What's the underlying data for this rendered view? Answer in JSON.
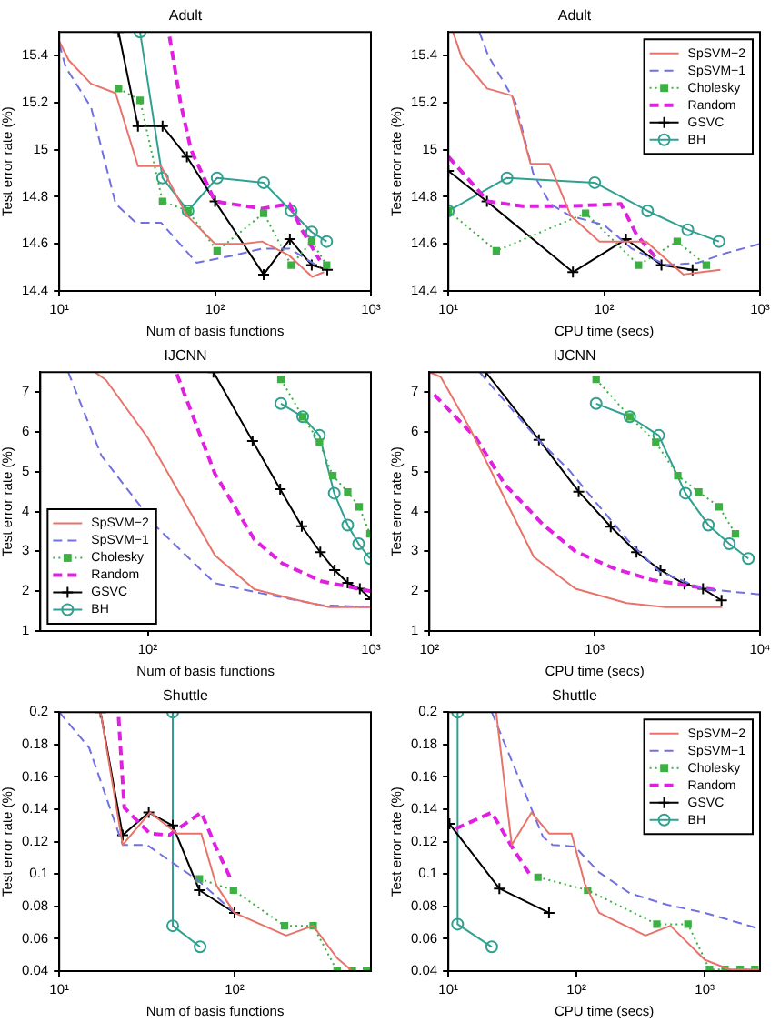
{
  "chart_data": [
    {
      "type": "line",
      "title": "Adult",
      "xlabel": "Num of basis functions",
      "ylabel": "Test error rate (%)",
      "log": "x",
      "xlim": [
        10,
        1000
      ],
      "xticks": [
        {
          "value": 10,
          "label": "10¹"
        },
        {
          "value": 100,
          "label": "10²"
        },
        {
          "value": 1000,
          "label": "10³"
        }
      ],
      "ylim": [
        14.4,
        15.5
      ],
      "yticks": [
        14.4,
        14.6,
        14.8,
        15,
        15.2,
        15.4
      ],
      "series": [
        {
          "color": "#e8736b",
          "line_style": "solid",
          "marker": "none",
          "x": [
            10,
            11.5,
            16,
            23,
            32,
            45,
            66,
            100,
            150,
            200,
            300,
            420,
            500
          ],
          "values": [
            15.46,
            15.38,
            15.28,
            15.24,
            14.93,
            14.93,
            14.72,
            14.6,
            14.6,
            14.61,
            14.55,
            14.46,
            14.48
          ]
        },
        {
          "color": "#7070e0",
          "line_style": "dashed",
          "marker": "none",
          "x": [
            10,
            11,
            16,
            23,
            31,
            45,
            76,
            130,
            200,
            300,
            470
          ],
          "values": [
            15.45,
            15.35,
            15.18,
            14.77,
            14.69,
            14.69,
            14.52,
            14.55,
            14.58,
            14.58,
            14.5
          ]
        },
        {
          "color": "#3cb043",
          "line_style": "dotted",
          "marker": "square",
          "x": [
            24,
            33,
            46,
            67,
            103,
            205,
            308,
            417,
            520
          ],
          "values": [
            15.26,
            15.21,
            14.78,
            14.74,
            14.57,
            14.73,
            14.51,
            14.61,
            14.51
          ]
        },
        {
          "color": "#e020e0",
          "line_style": "dashed",
          "marker": "none",
          "x": [
            51,
            60,
            70,
            100,
            200,
            300,
            360,
            470
          ],
          "values": [
            15.48,
            15.2,
            15.0,
            14.78,
            14.75,
            14.77,
            14.66,
            14.53
          ]
        },
        {
          "color": "#000000",
          "line_style": "solid",
          "marker": "cross",
          "x": [
            24,
            32,
            46,
            66,
            100,
            205,
            302,
            417,
            525
          ],
          "values": [
            15.5,
            15.1,
            15.1,
            14.97,
            14.78,
            14.47,
            14.62,
            14.51,
            14.49
          ]
        },
        {
          "color": "#30a090",
          "line_style": "solid",
          "marker": "circle",
          "x": [
            33,
            46,
            67,
            103,
            205,
            308,
            417,
            520
          ],
          "values": [
            15.5,
            14.88,
            14.74,
            14.88,
            14.86,
            14.74,
            14.65,
            14.61
          ]
        }
      ]
    },
    {
      "type": "line",
      "title": "Adult",
      "xlabel": "CPU time (secs)",
      "ylabel": "Test error rate (%)",
      "log": "x",
      "xlim": [
        10,
        1000
      ],
      "xticks": [
        {
          "value": 10,
          "label": "10¹"
        },
        {
          "value": 100,
          "label": "10²"
        },
        {
          "value": 1000,
          "label": "10³"
        }
      ],
      "ylim": [
        14.4,
        15.5
      ],
      "yticks": [
        14.4,
        14.6,
        14.8,
        15,
        15.2,
        15.4
      ],
      "legend": "top right",
      "series": [
        {
          "name": "SpSVM−2",
          "color": "#e8736b",
          "line_style": "solid",
          "marker": "none",
          "x": [
            10.7,
            12.2,
            17.7,
            25.6,
            33.7,
            44.5,
            61,
            93,
            135,
            186,
            323,
            557
          ],
          "values": [
            15.5,
            15.39,
            15.26,
            15.23,
            14.94,
            14.94,
            14.72,
            14.61,
            14.61,
            14.61,
            14.47,
            14.49
          ]
        },
        {
          "name": "SpSVM−1",
          "color": "#7070e0",
          "line_style": "dashed",
          "marker": "none",
          "x": [
            15.8,
            18,
            27,
            35,
            45,
            60,
            100,
            150,
            250,
            400,
            600,
            1000
          ],
          "values": [
            15.5,
            15.4,
            15.2,
            14.9,
            14.77,
            14.72,
            14.68,
            14.58,
            14.51,
            14.52,
            14.56,
            14.6
          ]
        },
        {
          "name": "Cholesky",
          "color": "#3cb043",
          "line_style": "dotted",
          "marker": "square",
          "x": [
            10,
            20.3,
            76,
            166,
            294,
            452
          ],
          "values": [
            14.74,
            14.57,
            14.73,
            14.51,
            14.61,
            14.51
          ]
        },
        {
          "name": "Random",
          "color": "#e020e0",
          "line_style": "dashed",
          "marker": "none",
          "x": [
            10,
            18,
            30,
            60,
            128,
            161,
            222
          ],
          "values": [
            14.97,
            14.78,
            14.76,
            14.76,
            14.77,
            14.64,
            14.53
          ]
        },
        {
          "name": "GSVC",
          "color": "#000000",
          "line_style": "solid",
          "marker": "cross",
          "x": [
            10,
            17.7,
            63,
            138,
            233,
            369
          ],
          "values": [
            14.91,
            14.78,
            14.48,
            14.62,
            14.51,
            14.49
          ]
        },
        {
          "name": "BH",
          "color": "#30a090",
          "line_style": "solid",
          "marker": "circle",
          "x": [
            10,
            23.8,
            87,
            190,
            344,
            545
          ],
          "values": [
            14.74,
            14.88,
            14.86,
            14.74,
            14.66,
            14.61
          ]
        }
      ]
    },
    {
      "type": "line",
      "title": "IJCNN",
      "xlabel": "Num of basis functions",
      "ylabel": "Test error rate (%)",
      "log": "x",
      "xlim": [
        33,
        1000
      ],
      "xticks": [
        {
          "value": 100,
          "label": "10²"
        },
        {
          "value": 1000,
          "label": "10³"
        }
      ],
      "ylim": [
        1,
        7.5
      ],
      "yticks": [
        1,
        2,
        3,
        4,
        5,
        6,
        7
      ],
      "legend": "bottom left",
      "series": [
        {
          "name": "SpSVM−2",
          "color": "#e8736b",
          "line_style": "solid",
          "marker": "none",
          "x": [
            58,
            65,
            100,
            200,
            300,
            450,
            650,
            1000
          ],
          "values": [
            7.5,
            7.3,
            5.85,
            2.9,
            2.05,
            1.8,
            1.6,
            1.6
          ]
        },
        {
          "name": "SpSVM−1",
          "color": "#7070e0",
          "line_style": "dashed",
          "marker": "none",
          "x": [
            44,
            62,
            110,
            200,
            320,
            600,
            1000
          ],
          "values": [
            7.5,
            5.4,
            3.6,
            2.2,
            1.95,
            1.65,
            1.6
          ]
        },
        {
          "name": "Cholesky",
          "color": "#3cb043",
          "line_style": "dotted",
          "marker": "square",
          "x": [
            395,
            495,
            588,
            675,
            787,
            886,
            990
          ],
          "values": [
            7.32,
            6.38,
            5.74,
            4.9,
            4.49,
            4.12,
            3.44
          ]
        },
        {
          "name": "Random",
          "color": "#e020e0",
          "line_style": "dashed",
          "marker": "none",
          "x": [
            135,
            200,
            300,
            400,
            600,
            1000
          ],
          "values": [
            7.45,
            4.95,
            3.3,
            2.7,
            2.25,
            2.0
          ]
        },
        {
          "name": "GSVC",
          "color": "#000000",
          "line_style": "solid",
          "marker": "cross",
          "x": [
            197,
            295,
            392,
            490,
            593,
            688,
            787,
            892,
            1000
          ],
          "values": [
            7.5,
            5.77,
            4.56,
            3.63,
            2.98,
            2.53,
            2.21,
            2.06,
            1.8
          ]
        },
        {
          "name": "BH",
          "color": "#30a090",
          "line_style": "solid",
          "marker": "circle",
          "x": [
            395,
            495,
            588,
            685,
            787,
            881,
            990
          ],
          "values": [
            6.71,
            6.38,
            5.91,
            4.46,
            3.66,
            3.19,
            2.82
          ]
        }
      ]
    },
    {
      "type": "line",
      "title": "IJCNN",
      "xlabel": "CPU time (secs)",
      "ylabel": "Test error rate (%)",
      "log": "x",
      "xlim": [
        100,
        10000
      ],
      "xticks": [
        {
          "value": 100,
          "label": "10²"
        },
        {
          "value": 1000,
          "label": "10³"
        },
        {
          "value": 10000,
          "label": "10⁴"
        }
      ],
      "ylim": [
        1,
        7.5
      ],
      "yticks": [
        1,
        2,
        3,
        4,
        5,
        6,
        7
      ],
      "series": [
        {
          "color": "#e8736b",
          "line_style": "solid",
          "marker": "none",
          "x": [
            100,
            117,
            175,
            428,
            765,
            1560,
            2670,
            5900
          ],
          "values": [
            7.5,
            7.38,
            6.1,
            2.86,
            2.06,
            1.7,
            1.6,
            1.6
          ]
        },
        {
          "color": "#7070e0",
          "line_style": "dashed",
          "marker": "none",
          "x": [
            201,
            447,
            700,
            913,
            1570,
            2450,
            4520,
            10000
          ],
          "values": [
            7.5,
            5.84,
            5.04,
            4.46,
            3.3,
            2.5,
            2.06,
            1.92
          ]
        },
        {
          "color": "#3cb043",
          "line_style": "dotted",
          "marker": "square",
          "x": [
            1020,
            1630,
            2340,
            3180,
            4260,
            5650,
            7100
          ],
          "values": [
            7.32,
            6.38,
            5.74,
            4.9,
            4.49,
            4.12,
            3.44
          ]
        },
        {
          "color": "#e020e0",
          "line_style": "dashed",
          "marker": "none",
          "x": [
            107,
            192,
            286,
            490,
            765,
            1310,
            2230,
            3810,
            5450
          ],
          "values": [
            6.93,
            5.84,
            4.68,
            3.66,
            3.0,
            2.57,
            2.28,
            2.13,
            2.03
          ]
        },
        {
          "color": "#000000",
          "line_style": "solid",
          "marker": "cross",
          "x": [
            219,
            460,
            800,
            1250,
            1790,
            2500,
            3490,
            4520,
            5850
          ],
          "values": [
            7.5,
            5.8,
            4.5,
            3.62,
            2.98,
            2.53,
            2.18,
            2.06,
            1.77
          ]
        },
        {
          "color": "#30a090",
          "line_style": "solid",
          "marker": "circle",
          "x": [
            1020,
            1630,
            2440,
            3540,
            4870,
            6520,
            8500
          ],
          "values": [
            6.71,
            6.38,
            5.91,
            4.46,
            3.66,
            3.19,
            2.82
          ]
        }
      ]
    },
    {
      "type": "line",
      "title": "Shuttle",
      "xlabel": "Num of basis functions",
      "ylabel": "Test error rate (%)",
      "log": "x",
      "xlim": [
        10,
        600
      ],
      "xticks": [
        {
          "value": 10,
          "label": "10¹"
        },
        {
          "value": 100,
          "label": "10²"
        }
      ],
      "ylim": [
        0.04,
        0.2
      ],
      "yticks": [
        0.04,
        0.06,
        0.08,
        0.1,
        0.12,
        0.14,
        0.16,
        0.18,
        0.2
      ],
      "series": [
        {
          "color": "#e8736b",
          "line_style": "solid",
          "marker": "none",
          "x": [
            17.2,
            23,
            32.9,
            47,
            64.6,
            78.7,
            100,
            197,
            281,
            385,
            470
          ],
          "values": [
            0.2,
            0.118,
            0.138,
            0.125,
            0.125,
            0.093,
            0.076,
            0.062,
            0.068,
            0.048,
            0.04
          ]
        },
        {
          "color": "#7070e0",
          "line_style": "dashed",
          "marker": "none",
          "x": [
            10,
            14.8,
            23,
            31.6,
            62,
            100
          ],
          "values": [
            0.2,
            0.178,
            0.118,
            0.118,
            0.096,
            0.076
          ]
        },
        {
          "color": "#3cb043",
          "line_style": "dotted",
          "marker": "square",
          "x": [
            63,
            98.6,
            193,
            281,
            385,
            470,
            566
          ],
          "values": [
            0.097,
            0.09,
            0.068,
            0.068,
            0.04,
            0.04,
            0.04
          ]
        },
        {
          "color": "#e020e0",
          "line_style": "dashed",
          "marker": "none",
          "x": [
            21.8,
            23.5,
            32.9,
            42.4,
            64.6,
            78.7,
            96
          ],
          "values": [
            0.197,
            0.141,
            0.125,
            0.124,
            0.138,
            0.116,
            0.096
          ]
        },
        {
          "color": "#000000",
          "line_style": "solid",
          "marker": "cross",
          "x": [
            17.2,
            23,
            32.4,
            44.4,
            63,
            100
          ],
          "values": [
            0.2,
            0.124,
            0.138,
            0.13,
            0.09,
            0.076
          ]
        },
        {
          "color": "#30a090",
          "line_style": "solid",
          "marker": "circle",
          "x": [
            44.4,
            44.4,
            63.6
          ],
          "values": [
            0.2,
            0.068,
            0.055
          ]
        }
      ]
    },
    {
      "type": "line",
      "title": "Shuttle",
      "xlabel": "CPU time (secs)",
      "ylabel": "Test error rate (%)",
      "log": "x",
      "xlim": [
        10,
        2700
      ],
      "xticks": [
        {
          "value": 10,
          "label": "10¹"
        },
        {
          "value": 100,
          "label": "10²"
        },
        {
          "value": 1000,
          "label": "10³"
        }
      ],
      "ylim": [
        0.04,
        0.2
      ],
      "yticks": [
        0.04,
        0.06,
        0.08,
        0.1,
        0.12,
        0.14,
        0.16,
        0.18,
        0.2
      ],
      "legend": "top right",
      "series": [
        {
          "name": "SpSVM−2",
          "color": "#e8736b",
          "line_style": "solid",
          "marker": "none",
          "x": [
            23.6,
            31.2,
            44.6,
            61,
            91.4,
            116,
            150,
            345,
            540,
            1000,
            1560,
            2700
          ],
          "values": [
            0.2,
            0.118,
            0.138,
            0.125,
            0.125,
            0.094,
            0.076,
            0.062,
            0.068,
            0.047,
            0.041,
            0.041
          ]
        },
        {
          "name": "SpSVM−1",
          "color": "#7070e0",
          "line_style": "dashed",
          "marker": "none",
          "x": [
            21.8,
            54.7,
            65,
            96.7,
            150,
            262,
            510,
            1000,
            2700
          ],
          "values": [
            0.2,
            0.123,
            0.118,
            0.117,
            0.101,
            0.088,
            0.081,
            0.076,
            0.066
          ]
        },
        {
          "name": "Cholesky",
          "color": "#3cb043",
          "line_style": "dotted",
          "marker": "square",
          "x": [
            50,
            122,
            423,
            740,
            1090,
            1440,
            1890,
            2460
          ],
          "values": [
            0.098,
            0.09,
            0.069,
            0.069,
            0.041,
            0.041,
            0.041,
            0.041
          ]
        },
        {
          "name": "Random",
          "color": "#e020e0",
          "line_style": "dashed",
          "marker": "none",
          "x": [
            11.4,
            21.8,
            31.2,
            44.6
          ],
          "values": [
            0.128,
            0.138,
            0.117,
            0.098
          ]
        },
        {
          "name": "GSVC",
          "color": "#000000",
          "line_style": "solid",
          "marker": "cross",
          "x": [
            10.2,
            25,
            61
          ],
          "values": [
            0.131,
            0.091,
            0.076
          ]
        },
        {
          "name": "BH",
          "color": "#30a090",
          "line_style": "solid",
          "marker": "circle",
          "x": [
            11.8,
            11.8,
            21.8
          ],
          "values": [
            0.2,
            0.069,
            0.055
          ]
        }
      ]
    }
  ]
}
